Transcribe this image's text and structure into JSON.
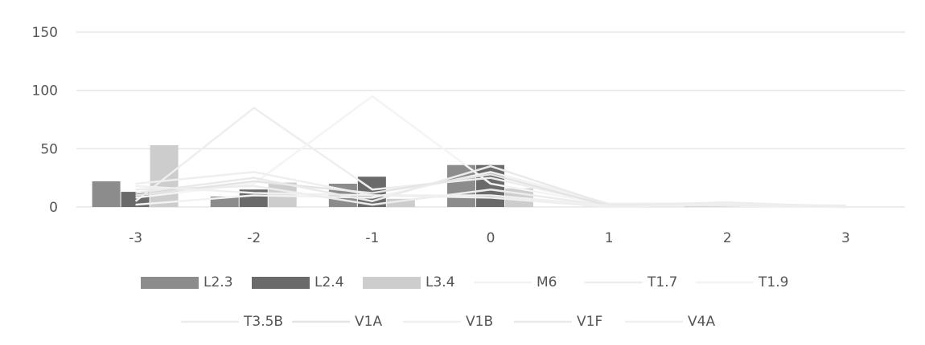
{
  "chart_data": {
    "type": "bar",
    "title": "",
    "xlabel": "",
    "ylabel": "",
    "categories": [
      "-3",
      "-2",
      "-1",
      "0",
      "1",
      "2",
      "3"
    ],
    "ylim": [
      0,
      150
    ],
    "yticks": [
      "0",
      "50",
      "100",
      "150"
    ],
    "grid": true,
    "legend_position": "bottom",
    "bar_series": [
      {
        "name": "L2.3",
        "color": "#8c8c8c",
        "values": [
          22,
          9,
          20,
          36,
          0,
          2,
          0
        ]
      },
      {
        "name": "L2.4",
        "color": "#6a6a6a",
        "values": [
          13,
          15,
          26,
          36,
          0,
          1,
          0
        ]
      },
      {
        "name": "L3.4",
        "color": "#cdcdcd",
        "values": [
          53,
          21,
          7,
          16,
          0,
          0,
          0
        ]
      }
    ],
    "line_series": [
      {
        "name": "M6",
        "color": "#f2f2f2",
        "values": [
          2,
          10,
          8,
          30,
          3,
          3,
          1
        ]
      },
      {
        "name": "T1.7",
        "color": "#eeeeee",
        "values": [
          5,
          85,
          15,
          25,
          2,
          2,
          0
        ]
      },
      {
        "name": "T1.9",
        "color": "#f4f4f4",
        "values": [
          8,
          20,
          95,
          20,
          2,
          1,
          0
        ]
      },
      {
        "name": "T3.5B",
        "color": "#ececec",
        "values": [
          15,
          18,
          2,
          15,
          1,
          4,
          0
        ]
      },
      {
        "name": "V1A",
        "color": "#e4e4e4",
        "values": [
          10,
          22,
          12,
          28,
          1,
          2,
          0
        ]
      },
      {
        "name": "V1B",
        "color": "#f0f0f0",
        "values": [
          18,
          12,
          10,
          10,
          1,
          1,
          0
        ]
      },
      {
        "name": "V1F",
        "color": "#eaeaea",
        "values": [
          12,
          25,
          5,
          35,
          2,
          2,
          1
        ]
      },
      {
        "name": "V4A",
        "color": "#efefef",
        "values": [
          20,
          30,
          10,
          8,
          0,
          3,
          0
        ]
      }
    ]
  }
}
